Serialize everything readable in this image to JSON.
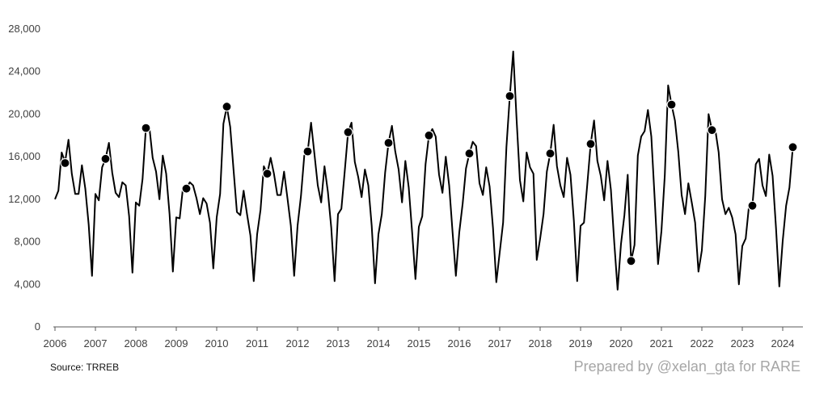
{
  "chart_data": {
    "type": "line",
    "y_ticks": [
      "0",
      "4,000",
      "8,000",
      "12,000",
      "16,000",
      "20,000",
      "24,000",
      "28,000"
    ],
    "x_ticks": [
      "2006",
      "2007",
      "2008",
      "2009",
      "2010",
      "2011",
      "2012",
      "2013",
      "2014",
      "2015",
      "2016",
      "2017",
      "2018",
      "2019",
      "2020",
      "2021",
      "2022",
      "2023",
      "2024"
    ],
    "ylim": [
      0,
      28000
    ],
    "xlim": [
      "2006-01",
      "2024-04"
    ],
    "series": [
      {
        "values": [
          [
            "2006-01",
            12000
          ],
          [
            "2006-02",
            12800
          ],
          [
            "2006-03",
            16400
          ],
          [
            "2006-04",
            15500
          ],
          [
            "2006-05",
            17600
          ],
          [
            "2006-06",
            14400
          ],
          [
            "2006-07",
            12500
          ],
          [
            "2006-08",
            12500
          ],
          [
            "2006-09",
            15200
          ],
          [
            "2006-10",
            13000
          ],
          [
            "2006-11",
            9600
          ],
          [
            "2006-12",
            4800
          ],
          [
            "2007-01",
            12500
          ],
          [
            "2007-02",
            11900
          ],
          [
            "2007-03",
            15000
          ],
          [
            "2007-04",
            15800
          ],
          [
            "2007-05",
            17300
          ],
          [
            "2007-06",
            14500
          ],
          [
            "2007-07",
            12600
          ],
          [
            "2007-08",
            12200
          ],
          [
            "2007-09",
            13600
          ],
          [
            "2007-10",
            13300
          ],
          [
            "2007-11",
            10400
          ],
          [
            "2007-12",
            5100
          ],
          [
            "2008-01",
            11700
          ],
          [
            "2008-02",
            11400
          ],
          [
            "2008-03",
            13900
          ],
          [
            "2008-04",
            18800
          ],
          [
            "2008-05",
            18800
          ],
          [
            "2008-06",
            15900
          ],
          [
            "2008-07",
            14600
          ],
          [
            "2008-08",
            12000
          ],
          [
            "2008-09",
            16100
          ],
          [
            "2008-10",
            14400
          ],
          [
            "2008-11",
            10600
          ],
          [
            "2008-12",
            5200
          ],
          [
            "2009-01",
            10300
          ],
          [
            "2009-02",
            10200
          ],
          [
            "2009-03",
            13100
          ],
          [
            "2009-04",
            13000
          ],
          [
            "2009-05",
            13600
          ],
          [
            "2009-06",
            13300
          ],
          [
            "2009-07",
            12100
          ],
          [
            "2009-08",
            10600
          ],
          [
            "2009-09",
            12100
          ],
          [
            "2009-10",
            11600
          ],
          [
            "2009-11",
            9800
          ],
          [
            "2009-12",
            5500
          ],
          [
            "2010-01",
            10300
          ],
          [
            "2010-02",
            12500
          ],
          [
            "2010-03",
            19100
          ],
          [
            "2010-04",
            20700
          ],
          [
            "2010-05",
            18800
          ],
          [
            "2010-06",
            14800
          ],
          [
            "2010-07",
            10800
          ],
          [
            "2010-08",
            10500
          ],
          [
            "2010-09",
            12800
          ],
          [
            "2010-10",
            10600
          ],
          [
            "2010-11",
            8600
          ],
          [
            "2010-12",
            4300
          ],
          [
            "2011-01",
            8700
          ],
          [
            "2011-02",
            11000
          ],
          [
            "2011-03",
            15100
          ],
          [
            "2011-04",
            14400
          ],
          [
            "2011-05",
            15900
          ],
          [
            "2011-06",
            14400
          ],
          [
            "2011-07",
            12400
          ],
          [
            "2011-08",
            12400
          ],
          [
            "2011-09",
            14600
          ],
          [
            "2011-10",
            12100
          ],
          [
            "2011-11",
            9500
          ],
          [
            "2011-12",
            4800
          ],
          [
            "2012-01",
            9500
          ],
          [
            "2012-02",
            12300
          ],
          [
            "2012-03",
            16100
          ],
          [
            "2012-04",
            16500
          ],
          [
            "2012-05",
            19200
          ],
          [
            "2012-06",
            16300
          ],
          [
            "2012-07",
            13300
          ],
          [
            "2012-08",
            11700
          ],
          [
            "2012-09",
            15100
          ],
          [
            "2012-10",
            12700
          ],
          [
            "2012-11",
            9300
          ],
          [
            "2012-12",
            4300
          ],
          [
            "2013-01",
            10600
          ],
          [
            "2013-02",
            11100
          ],
          [
            "2013-03",
            14600
          ],
          [
            "2013-04",
            18300
          ],
          [
            "2013-05",
            19200
          ],
          [
            "2013-06",
            15500
          ],
          [
            "2013-07",
            14100
          ],
          [
            "2013-08",
            12200
          ],
          [
            "2013-09",
            14800
          ],
          [
            "2013-10",
            13300
          ],
          [
            "2013-11",
            9500
          ],
          [
            "2013-12",
            4100
          ],
          [
            "2014-01",
            8700
          ],
          [
            "2014-02",
            10600
          ],
          [
            "2014-03",
            14500
          ],
          [
            "2014-04",
            17300
          ],
          [
            "2014-05",
            18900
          ],
          [
            "2014-06",
            16500
          ],
          [
            "2014-07",
            14800
          ],
          [
            "2014-08",
            11700
          ],
          [
            "2014-09",
            15600
          ],
          [
            "2014-10",
            13100
          ],
          [
            "2014-11",
            8900
          ],
          [
            "2014-12",
            4500
          ],
          [
            "2015-01",
            9400
          ],
          [
            "2015-02",
            10400
          ],
          [
            "2015-03",
            15300
          ],
          [
            "2015-04",
            18000
          ],
          [
            "2015-05",
            18600
          ],
          [
            "2015-06",
            17900
          ],
          [
            "2015-07",
            14300
          ],
          [
            "2015-08",
            12600
          ],
          [
            "2015-09",
            16000
          ],
          [
            "2015-10",
            13300
          ],
          [
            "2015-11",
            8900
          ],
          [
            "2015-12",
            4800
          ],
          [
            "2016-01",
            8900
          ],
          [
            "2016-02",
            11600
          ],
          [
            "2016-03",
            14900
          ],
          [
            "2016-04",
            16300
          ],
          [
            "2016-05",
            17400
          ],
          [
            "2016-06",
            17000
          ],
          [
            "2016-07",
            13500
          ],
          [
            "2016-08",
            12400
          ],
          [
            "2016-09",
            15000
          ],
          [
            "2016-10",
            13200
          ],
          [
            "2016-11",
            9300
          ],
          [
            "2016-12",
            4200
          ],
          [
            "2017-01",
            7000
          ],
          [
            "2017-02",
            9800
          ],
          [
            "2017-03",
            16900
          ],
          [
            "2017-04",
            21700
          ],
          [
            "2017-05",
            25900
          ],
          [
            "2017-06",
            19600
          ],
          [
            "2017-07",
            13800
          ],
          [
            "2017-08",
            11800
          ],
          [
            "2017-09",
            16400
          ],
          [
            "2017-10",
            15000
          ],
          [
            "2017-11",
            14400
          ],
          [
            "2017-12",
            6300
          ],
          [
            "2018-01",
            8300
          ],
          [
            "2018-02",
            10600
          ],
          [
            "2018-03",
            14600
          ],
          [
            "2018-04",
            16300
          ],
          [
            "2018-05",
            19000
          ],
          [
            "2018-06",
            15100
          ],
          [
            "2018-07",
            13300
          ],
          [
            "2018-08",
            12200
          ],
          [
            "2018-09",
            15900
          ],
          [
            "2018-10",
            14300
          ],
          [
            "2018-11",
            10000
          ],
          [
            "2018-12",
            4300
          ],
          [
            "2019-01",
            9500
          ],
          [
            "2019-02",
            9800
          ],
          [
            "2019-03",
            13400
          ],
          [
            "2019-04",
            17200
          ],
          [
            "2019-05",
            19400
          ],
          [
            "2019-06",
            15600
          ],
          [
            "2019-07",
            14200
          ],
          [
            "2019-08",
            11900
          ],
          [
            "2019-09",
            15600
          ],
          [
            "2019-10",
            12900
          ],
          [
            "2019-11",
            7900
          ],
          [
            "2019-12",
            3500
          ],
          [
            "2020-01",
            7800
          ],
          [
            "2020-02",
            10500
          ],
          [
            "2020-03",
            14300
          ],
          [
            "2020-04",
            6200
          ],
          [
            "2020-05",
            7700
          ],
          [
            "2020-06",
            16100
          ],
          [
            "2020-07",
            17900
          ],
          [
            "2020-08",
            18400
          ],
          [
            "2020-09",
            20400
          ],
          [
            "2020-10",
            17900
          ],
          [
            "2020-11",
            12000
          ],
          [
            "2020-12",
            5900
          ],
          [
            "2021-01",
            9000
          ],
          [
            "2021-02",
            14300
          ],
          [
            "2021-03",
            22700
          ],
          [
            "2021-04",
            20900
          ],
          [
            "2021-05",
            19400
          ],
          [
            "2021-06",
            16500
          ],
          [
            "2021-07",
            12400
          ],
          [
            "2021-08",
            10600
          ],
          [
            "2021-09",
            13500
          ],
          [
            "2021-10",
            11700
          ],
          [
            "2021-11",
            9800
          ],
          [
            "2021-12",
            5200
          ],
          [
            "2022-01",
            7200
          ],
          [
            "2022-02",
            12300
          ],
          [
            "2022-03",
            20000
          ],
          [
            "2022-04",
            18500
          ],
          [
            "2022-05",
            18500
          ],
          [
            "2022-06",
            16400
          ],
          [
            "2022-07",
            12000
          ],
          [
            "2022-08",
            10600
          ],
          [
            "2022-09",
            11200
          ],
          [
            "2022-10",
            10300
          ],
          [
            "2022-11",
            8700
          ],
          [
            "2022-12",
            4000
          ],
          [
            "2023-01",
            7600
          ],
          [
            "2023-02",
            8300
          ],
          [
            "2023-03",
            11400
          ],
          [
            "2023-04",
            11400
          ],
          [
            "2023-05",
            15300
          ],
          [
            "2023-06",
            15800
          ],
          [
            "2023-07",
            13300
          ],
          [
            "2023-08",
            12300
          ],
          [
            "2023-09",
            16200
          ],
          [
            "2023-10",
            14200
          ],
          [
            "2023-11",
            9300
          ],
          [
            "2023-12",
            3800
          ],
          [
            "2024-01",
            8100
          ],
          [
            "2024-02",
            11400
          ],
          [
            "2024-03",
            13100
          ],
          [
            "2024-04",
            16900
          ]
        ]
      }
    ],
    "markers": [
      [
        "2006-04",
        15400
      ],
      [
        "2007-04",
        15800
      ],
      [
        "2008-04",
        18700
      ],
      [
        "2009-04",
        13000
      ],
      [
        "2010-04",
        20700
      ],
      [
        "2011-04",
        14400
      ],
      [
        "2012-04",
        16500
      ],
      [
        "2013-04",
        18300
      ],
      [
        "2014-04",
        17300
      ],
      [
        "2015-04",
        18000
      ],
      [
        "2016-04",
        16300
      ],
      [
        "2017-04",
        21700
      ],
      [
        "2018-04",
        16300
      ],
      [
        "2019-04",
        17200
      ],
      [
        "2020-04",
        6200
      ],
      [
        "2021-04",
        20900
      ],
      [
        "2022-04",
        18500
      ],
      [
        "2023-04",
        11400
      ],
      [
        "2024-04",
        16900
      ]
    ],
    "grid": false,
    "line_color": "#000000",
    "axis_color": "#595959"
  },
  "footer": {
    "source": "Source: TRREB",
    "credit": "Prepared by @xelan_gta for RARE"
  }
}
